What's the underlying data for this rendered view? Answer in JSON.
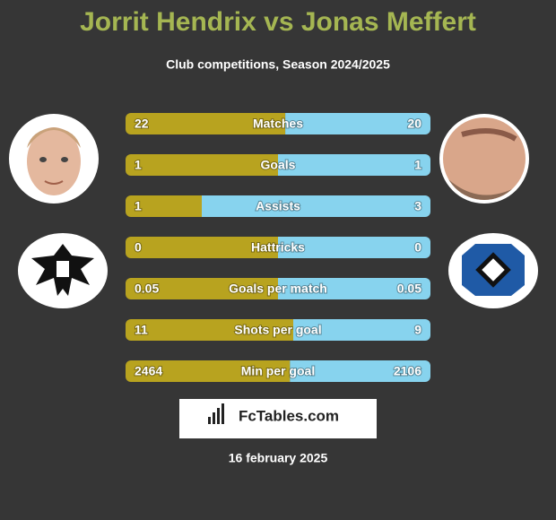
{
  "chart_data": {
    "type": "comparison",
    "title": "Jorrit Hendrix vs Jonas Meffert",
    "subtitle": "Club competitions, Season 2024/2025",
    "categories": [
      "Matches",
      "Goals",
      "Assists",
      "Hattricks",
      "Goals per match",
      "Shots per goal",
      "Min per goal"
    ],
    "series": [
      {
        "color": "#b8a31f",
        "values": [
          22,
          1,
          1,
          0,
          0.05,
          11,
          2464
        ]
      },
      {
        "color": "#87d3ee",
        "values": [
          20,
          1,
          3,
          0,
          0.05,
          9,
          2106
        ]
      }
    ]
  },
  "footer": {
    "brand": "FcTables.com",
    "date": "16 february 2025"
  }
}
